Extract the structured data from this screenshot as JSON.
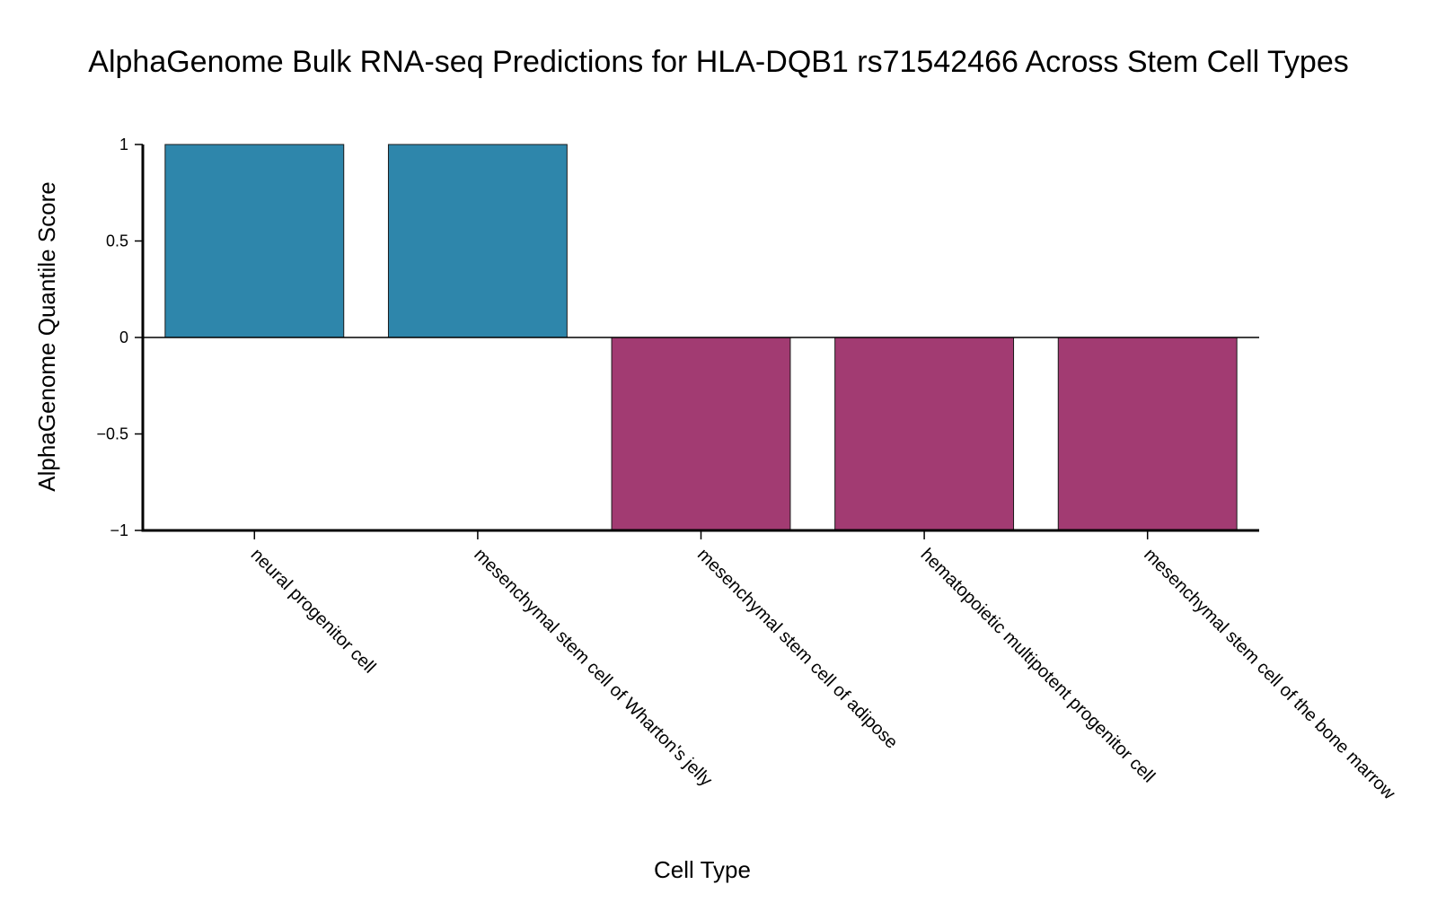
{
  "chart_data": {
    "type": "bar",
    "title": "AlphaGenome Bulk RNA-seq Predictions for HLA-DQB1 rs71542466 Across Stem Cell Types",
    "xlabel": "Cell Type",
    "ylabel": "AlphaGenome Quantile Score",
    "ylim": [
      -1,
      1
    ],
    "yticks": [
      {
        "value": 1,
        "label": "1"
      },
      {
        "value": 0.5,
        "label": "0.5"
      },
      {
        "value": 0,
        "label": "0"
      },
      {
        "value": -0.5,
        "label": "−0.5"
      },
      {
        "value": -1,
        "label": "−1"
      }
    ],
    "categories": [
      "neural progenitor cell",
      "mesenchymal stem cell of Wharton's jelly",
      "mesenchymal stem cell of adipose",
      "hematopoietic multipotent progenitor cell",
      "mesenchymal stem cell of the bone marrow"
    ],
    "values": [
      1,
      1,
      -1,
      -1,
      -1
    ],
    "grid": false,
    "legend": "none",
    "colors": {
      "positive": "#2e86ab",
      "negative": "#a23b72",
      "bar_outline": "#1a1a1a",
      "axis": "#000000"
    }
  }
}
